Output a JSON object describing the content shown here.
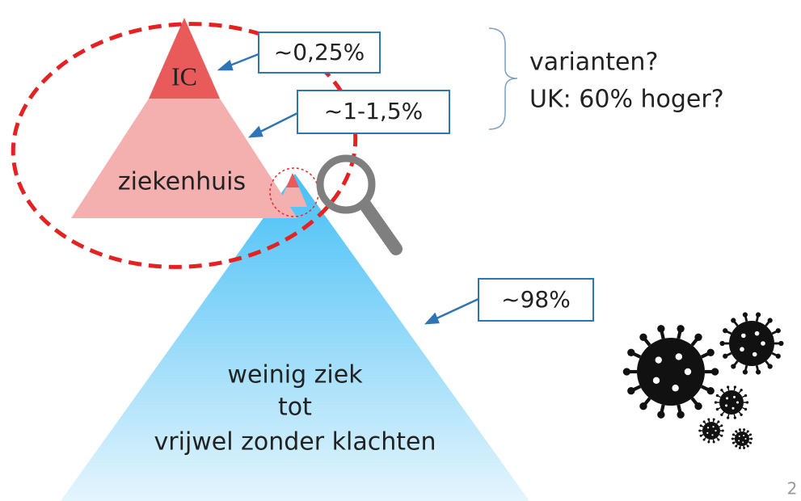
{
  "small_pyramid": {
    "levels": [
      {
        "label": "IC"
      },
      {
        "label": "ziekenhuis"
      }
    ]
  },
  "large_pyramid": {
    "lines": [
      "weinig ziek",
      "tot",
      "vrijwel zonder klachten"
    ]
  },
  "callouts": [
    {
      "label": "~0,25%"
    },
    {
      "label": "~1-1,5%"
    },
    {
      "label": "~98%"
    }
  ],
  "side_note": {
    "lines": [
      "varianten?",
      "UK: 60% hoger?"
    ]
  },
  "page_number": "2"
}
